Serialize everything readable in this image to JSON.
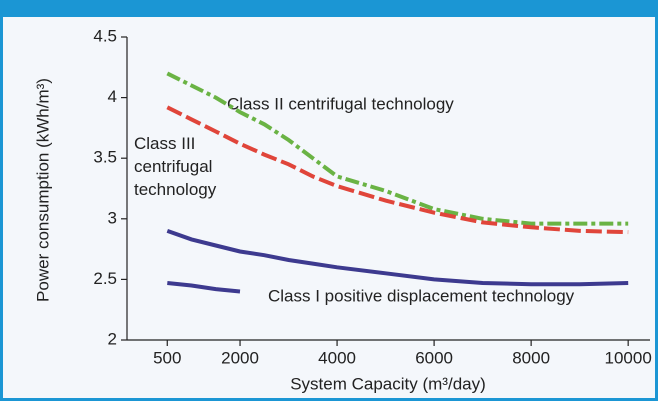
{
  "chart_data": {
    "type": "line",
    "ylabel": "Power consumption (kWh/m³)",
    "xlabel": "System Capacity (m³/day)",
    "x": [
      500,
      1000,
      1500,
      2000,
      2500,
      3000,
      3500,
      4000,
      5000,
      6000,
      7000,
      8000,
      9000,
      10000
    ],
    "series": [
      {
        "name": "Class II centrifugal technology",
        "color": "#6ab344",
        "values": [
          4.2,
          4.1,
          4.0,
          3.88,
          3.78,
          3.65,
          3.5,
          3.35,
          3.23,
          3.08,
          3.0,
          2.96,
          2.96,
          2.96
        ]
      },
      {
        "name": "Class III centrifugal technology",
        "color": "#e0453a",
        "values": [
          3.92,
          3.82,
          3.72,
          3.62,
          3.53,
          3.45,
          3.35,
          3.27,
          3.15,
          3.05,
          2.97,
          2.93,
          2.9,
          2.89
        ]
      },
      {
        "name": "Class I positive displacement technology",
        "color": "#3d3a8f",
        "values": [
          2.9,
          2.83,
          2.78,
          2.73,
          2.7,
          2.66,
          2.63,
          2.6,
          2.55,
          2.5,
          2.47,
          2.46,
          2.46,
          2.47
        ]
      },
      {
        "color": "#3d3a8f",
        "values": [
          2.47,
          2.45,
          2.42,
          2.4,
          null,
          null,
          null,
          null,
          null,
          null,
          null,
          null,
          null,
          null
        ]
      }
    ],
    "xlim": [
      -330,
      10450
    ],
    "ylim": [
      2,
      4.5
    ],
    "xticks": [
      500,
      2000,
      4000,
      6000,
      8000,
      10000
    ],
    "yticks": [
      2,
      2.5,
      3,
      3.5,
      4,
      4.5
    ]
  }
}
